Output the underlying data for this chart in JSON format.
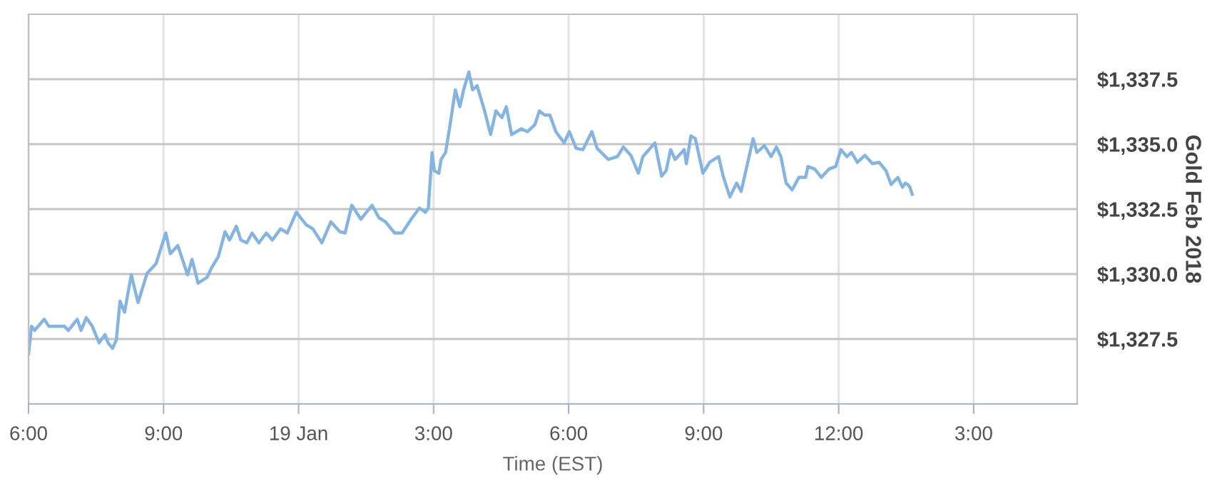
{
  "chart_data": {
    "type": "line",
    "xlabel": "Time (EST)",
    "ylabel": "Gold Feb 2018",
    "x": [
      "2018-01-18T18:00",
      "2018-01-18T18:04",
      "2018-01-18T18:08",
      "2018-01-18T18:21",
      "2018-01-18T18:27",
      "2018-01-18T18:48",
      "2018-01-18T18:53",
      "2018-01-18T19:05",
      "2018-01-18T19:10",
      "2018-01-18T19:17",
      "2018-01-18T19:25",
      "2018-01-18T19:34",
      "2018-01-18T19:42",
      "2018-01-18T19:46",
      "2018-01-18T19:52",
      "2018-01-18T19:57",
      "2018-01-18T20:02",
      "2018-01-18T20:08",
      "2018-01-18T20:17",
      "2018-01-18T20:26",
      "2018-01-18T20:38",
      "2018-01-18T20:50",
      "2018-01-18T21:03",
      "2018-01-18T21:09",
      "2018-01-18T21:19",
      "2018-01-18T21:32",
      "2018-01-18T21:38",
      "2018-01-18T21:46",
      "2018-01-18T21:58",
      "2018-01-18T22:04",
      "2018-01-18T22:13",
      "2018-01-18T22:22",
      "2018-01-18T22:28",
      "2018-01-18T22:37",
      "2018-01-18T22:43",
      "2018-01-18T22:51",
      "2018-01-18T22:58",
      "2018-01-18T23:07",
      "2018-01-18T23:17",
      "2018-01-18T23:25",
      "2018-01-18T23:36",
      "2018-01-18T23:45",
      "2018-01-18T23:57",
      "2018-01-19T00:10",
      "2018-01-19T00:19",
      "2018-01-19T00:31",
      "2018-01-19T00:43",
      "2018-01-19T00:55",
      "2018-01-19T01:02",
      "2018-01-19T01:11",
      "2018-01-19T01:23",
      "2018-01-19T01:38",
      "2018-01-19T01:47",
      "2018-01-19T01:56",
      "2018-01-19T02:08",
      "2018-01-19T02:18",
      "2018-01-19T02:30",
      "2018-01-19T02:41",
      "2018-01-19T02:49",
      "2018-01-19T02:53",
      "2018-01-19T02:58",
      "2018-01-19T03:01",
      "2018-01-19T03:07",
      "2018-01-19T03:10",
      "2018-01-19T03:16",
      "2018-01-19T03:22",
      "2018-01-19T03:29",
      "2018-01-19T03:35",
      "2018-01-19T03:40",
      "2018-01-19T03:47",
      "2018-01-19T03:52",
      "2018-01-19T03:58",
      "2018-01-19T04:08",
      "2018-01-19T04:16",
      "2018-01-19T04:23",
      "2018-01-19T04:31",
      "2018-01-19T04:37",
      "2018-01-19T04:44",
      "2018-01-19T04:57",
      "2018-01-19T05:05",
      "2018-01-19T05:15",
      "2018-01-19T05:21",
      "2018-01-19T05:28",
      "2018-01-19T05:35",
      "2018-01-19T05:43",
      "2018-01-19T05:54",
      "2018-01-19T06:01",
      "2018-01-19T06:10",
      "2018-01-19T06:19",
      "2018-01-19T06:31",
      "2018-01-19T06:38",
      "2018-01-19T06:53",
      "2018-01-19T07:05",
      "2018-01-19T07:13",
      "2018-01-19T07:23",
      "2018-01-19T07:33",
      "2018-01-19T07:39",
      "2018-01-19T07:55",
      "2018-01-19T08:04",
      "2018-01-19T08:10",
      "2018-01-19T08:16",
      "2018-01-19T08:22",
      "2018-01-19T08:34",
      "2018-01-19T08:37",
      "2018-01-19T08:43",
      "2018-01-19T08:49",
      "2018-01-19T08:59",
      "2018-01-19T09:08",
      "2018-01-19T09:20",
      "2018-01-19T09:26",
      "2018-01-19T09:35",
      "2018-01-19T09:44",
      "2018-01-19T09:50",
      "2018-01-19T10:06",
      "2018-01-19T10:11",
      "2018-01-19T10:21",
      "2018-01-19T10:30",
      "2018-01-19T10:37",
      "2018-01-19T10:43",
      "2018-01-19T10:50",
      "2018-01-19T10:58",
      "2018-01-19T11:07",
      "2018-01-19T11:16",
      "2018-01-19T11:19",
      "2018-01-19T11:28",
      "2018-01-19T11:37",
      "2018-01-19T11:47",
      "2018-01-19T11:56",
      "2018-01-19T12:03",
      "2018-01-19T12:11",
      "2018-01-19T12:17",
      "2018-01-19T12:25",
      "2018-01-19T12:35",
      "2018-01-19T12:45",
      "2018-01-19T12:54",
      "2018-01-19T13:03",
      "2018-01-19T13:10",
      "2018-01-19T13:19",
      "2018-01-19T13:25",
      "2018-01-19T13:29",
      "2018-01-19T13:32",
      "2018-01-19T13:35",
      "2018-01-19T13:38"
    ],
    "series": [
      {
        "color": "#85b4e0",
        "values": [
          1326.93,
          1327.99,
          1327.83,
          1328.26,
          1327.99,
          1327.99,
          1327.83,
          1328.26,
          1327.83,
          1328.32,
          1327.99,
          1327.35,
          1327.67,
          1327.35,
          1327.14,
          1327.46,
          1328.96,
          1328.53,
          1329.97,
          1328.9,
          1330.03,
          1330.4,
          1331.58,
          1330.78,
          1331.1,
          1329.97,
          1330.56,
          1329.65,
          1329.87,
          1330.24,
          1330.67,
          1331.63,
          1331.31,
          1331.84,
          1331.31,
          1331.2,
          1331.58,
          1331.2,
          1331.58,
          1331.31,
          1331.74,
          1331.58,
          1332.38,
          1331.9,
          1331.74,
          1331.2,
          1332.01,
          1331.63,
          1331.58,
          1332.65,
          1332.11,
          1332.65,
          1332.17,
          1332.01,
          1331.58,
          1331.58,
          1332.11,
          1332.54,
          1332.38,
          1332.54,
          1334.68,
          1333.98,
          1333.88,
          1334.41,
          1334.68,
          1335.75,
          1337.09,
          1336.44,
          1337.09,
          1337.78,
          1337.09,
          1337.25,
          1336.28,
          1335.37,
          1336.28,
          1336.02,
          1336.44,
          1335.37,
          1335.59,
          1335.48,
          1335.75,
          1336.28,
          1336.12,
          1336.12,
          1335.48,
          1335.05,
          1335.48,
          1334.84,
          1334.79,
          1335.48,
          1334.84,
          1334.41,
          1334.52,
          1334.89,
          1334.57,
          1333.88,
          1334.52,
          1335.05,
          1333.77,
          1333.98,
          1334.79,
          1334.41,
          1334.79,
          1334.25,
          1335.32,
          1335.21,
          1333.88,
          1334.3,
          1334.52,
          1333.77,
          1332.97,
          1333.5,
          1333.18,
          1335.21,
          1334.68,
          1334.94,
          1334.52,
          1334.89,
          1334.52,
          1333.5,
          1333.24,
          1333.72,
          1333.72,
          1334.14,
          1334.04,
          1333.72,
          1334.04,
          1334.14,
          1334.79,
          1334.52,
          1334.68,
          1334.3,
          1334.57,
          1334.25,
          1334.3,
          1333.98,
          1333.45,
          1333.72,
          1333.34,
          1333.5,
          1333.45,
          1333.34,
          1333.07
        ]
      }
    ],
    "xlim": [
      "2018-01-18T18:00",
      "2018-01-19T17:18"
    ],
    "xticks": [
      {
        "value": "2018-01-18T18:00",
        "label": "6:00"
      },
      {
        "value": "2018-01-18T21:00",
        "label": "9:00"
      },
      {
        "value": "2018-01-19T00:00",
        "label": "19 Jan"
      },
      {
        "value": "2018-01-19T03:00",
        "label": "3:00"
      },
      {
        "value": "2018-01-19T06:00",
        "label": "6:00"
      },
      {
        "value": "2018-01-19T09:00",
        "label": "9:00"
      },
      {
        "value": "2018-01-19T12:00",
        "label": "12:00"
      },
      {
        "value": "2018-01-19T15:00",
        "label": "3:00"
      }
    ],
    "ylim": [
      1325,
      1340
    ],
    "yticks": [
      {
        "value": 1327.5,
        "label": "$1,327.5"
      },
      {
        "value": 1330,
        "label": "$1,330.0"
      },
      {
        "value": 1332.5,
        "label": "$1,332.5"
      },
      {
        "value": 1335,
        "label": "$1,335.0"
      },
      {
        "value": 1337.5,
        "label": "$1,337.5"
      }
    ],
    "grid": true,
    "marker": "none",
    "line_style": "solid"
  }
}
